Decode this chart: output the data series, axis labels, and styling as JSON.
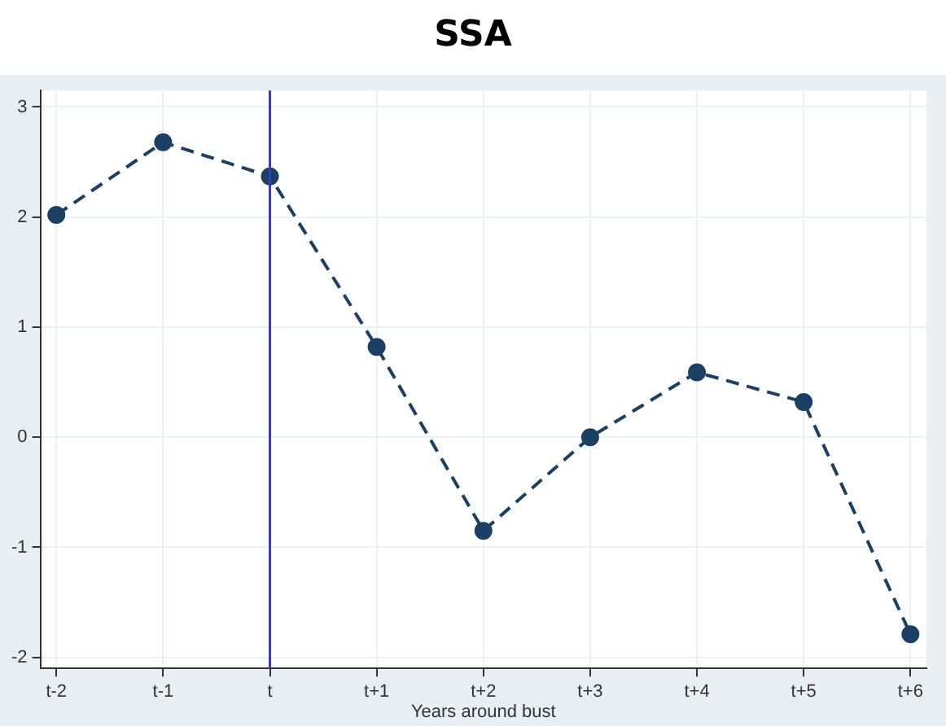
{
  "chart_data": {
    "type": "line",
    "title": "SSA",
    "xlabel": "Years around bust",
    "categories": [
      "t-2",
      "t-1",
      "t",
      "t+1",
      "t+2",
      "t+3",
      "t+4",
      "t+5",
      "t+6"
    ],
    "series": [
      {
        "color": "#1c3f64",
        "values": [
          2.02,
          2.68,
          2.37,
          0.82,
          -0.85,
          0.0,
          0.59,
          0.32,
          -1.79
        ]
      }
    ],
    "ylim": [
      -2.1,
      3.15
    ],
    "yticks": [
      -2,
      -1,
      0,
      1,
      2,
      3
    ],
    "ref_lines": [
      {
        "axis": "x",
        "value": "t",
        "color": "#3b3bbb"
      }
    ],
    "grid": true,
    "legend": false,
    "marker": "circle",
    "line_style": "dashed"
  }
}
